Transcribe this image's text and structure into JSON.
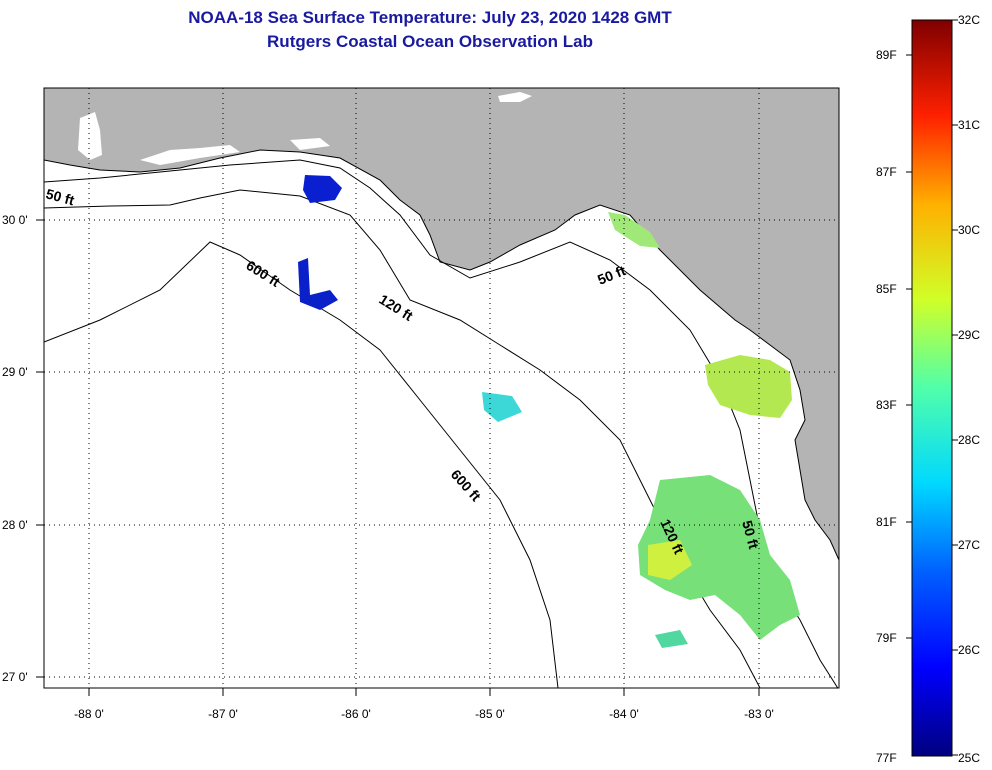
{
  "title": "NOAA-18 Sea Surface Temperature:  July 23, 2020 1428 GMT",
  "subtitle": "Rutgers Coastal Ocean Observation Lab",
  "map": {
    "lon_ticks": [
      "-88 0'",
      "-87 0'",
      "-86 0'",
      "-85 0'",
      "-84 0'",
      "-83 0'"
    ],
    "lat_ticks": [
      "30 0'",
      "29 0'",
      "28 0'",
      "27 0'"
    ],
    "contour_labels": [
      "50 ft",
      "600 ft",
      "120 ft",
      "50 ft",
      "600 ft",
      "120 ft",
      "50 ft"
    ],
    "land_color": "#b4b4b4",
    "water_color": "#ffffff"
  },
  "colorbar": {
    "celsius_labels": [
      "32C",
      "31C",
      "30C",
      "29C",
      "28C",
      "27C",
      "26C",
      "25C"
    ],
    "fahrenheit_labels": [
      "89F",
      "87F",
      "85F",
      "83F",
      "81F",
      "79F",
      "77F"
    ],
    "range_c": [
      25,
      32
    ]
  }
}
